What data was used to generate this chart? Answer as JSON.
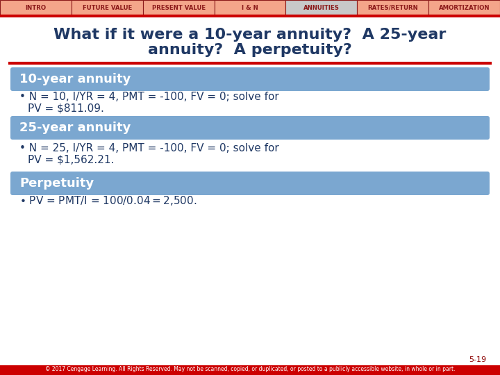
{
  "nav_items": [
    "INTRO",
    "FUTURE VALUE",
    "PRESENT VALUE",
    "I & N",
    "ANNUITIES",
    "RATES/RETURN",
    "AMORTIZATION"
  ],
  "nav_bg": "#F4A58A",
  "nav_active_bg": "#C0C0C0",
  "nav_active_index": 4,
  "nav_text_color": "#8B1A1A",
  "nav_border_color": "#8B1A1A",
  "red_line_color": "#CC0000",
  "title_text_line1": "What if it were a 10-year annuity?  A 25-year",
  "title_text_line2": "annuity?  A perpetuity?",
  "title_color": "#1F3864",
  "section_bg": "#7BA7D0",
  "section_text_color": "#FFFFFF",
  "body_text_color": "#1F3864",
  "bg_color": "#FFFFFF",
  "sections": [
    {
      "header": "10-year annuity",
      "bullet": "N = 10, I/YR = 4, PMT = -100, FV = 0; solve for\nPV = $811.09."
    },
    {
      "header": "25-year annuity",
      "bullet": "N = 25, I/YR = 4, PMT = -100, FV = 0; solve for\nPV = $1,562.21."
    },
    {
      "header": "Perpetuity",
      "bullet": "PV = PMT/I = $100/0.04 = $2,500."
    }
  ],
  "slide_number": "5-19",
  "footer": "© 2017 Cengage Learning. All Rights Reserved. May not be scanned, copied, or duplicated, or posted to a publicly accessible website, in whole or in part.",
  "bottom_bar_color": "#CC0000"
}
